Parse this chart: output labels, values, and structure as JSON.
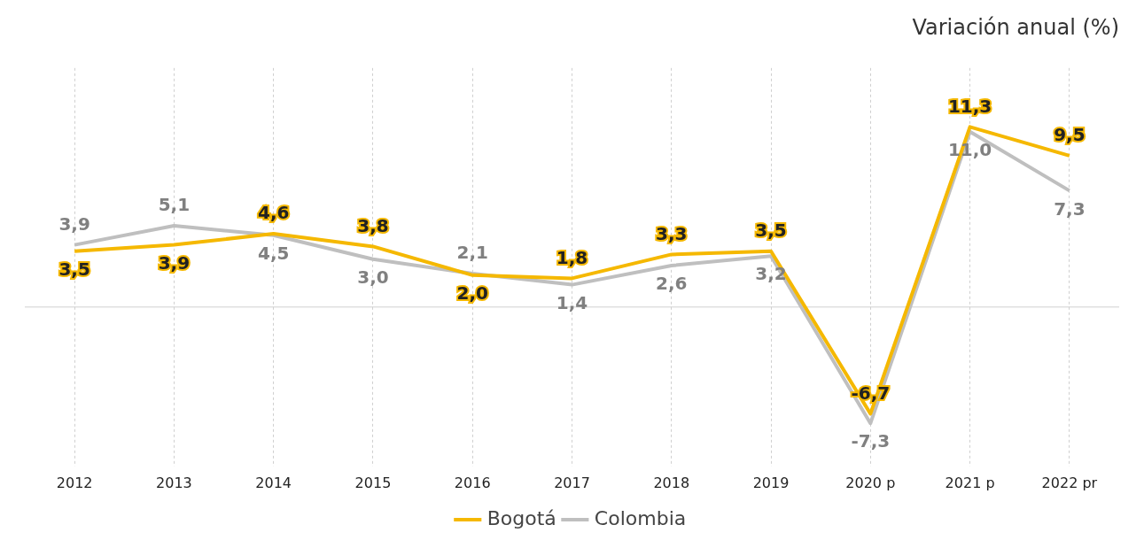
{
  "chart_data": {
    "type": "line",
    "title": "Variación anual (%)",
    "categories": [
      "2012",
      "2013",
      "2014",
      "2015",
      "2016",
      "2017",
      "2018",
      "2019",
      "2020 p",
      "2021 p",
      "2022 pr"
    ],
    "series": [
      {
        "name": "Bogotá",
        "color": "#f5b800",
        "values": [
          3.5,
          3.9,
          4.6,
          3.8,
          2.0,
          1.8,
          3.3,
          3.5,
          -6.7,
          11.3,
          9.5
        ],
        "value_labels": [
          "3,5",
          "3,9",
          "4,6",
          "3,8",
          "2,0",
          "1,8",
          "3,3",
          "3,5",
          "-6,7",
          "11,3",
          "9,5"
        ]
      },
      {
        "name": "Colombia",
        "color": "#bfbfbf",
        "values": [
          3.9,
          5.1,
          4.5,
          3.0,
          2.1,
          1.4,
          2.6,
          3.2,
          -7.3,
          11.0,
          7.3
        ],
        "value_labels": [
          "3,9",
          "5,1",
          "4,5",
          "3,0",
          "2,1",
          "1,4",
          "2,6",
          "3,2",
          "-7,3",
          "11,0",
          "7,3"
        ]
      }
    ],
    "ref_lines": [
      {
        "axis": "y",
        "value": 0,
        "color": "#d0d0d0"
      }
    ],
    "grid": "x",
    "legend": "bottom",
    "marker": "none",
    "line_style": "solid"
  }
}
